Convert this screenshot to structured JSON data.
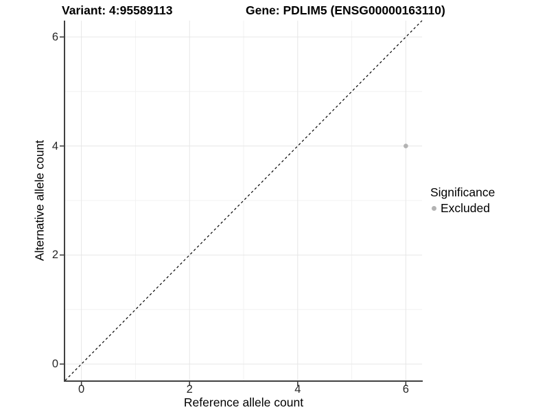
{
  "titles": {
    "variant": "Variant: 4:95589113",
    "gene": "Gene: PDLIM5 (ENSG00000163110)"
  },
  "chart_data": {
    "type": "scatter",
    "xlabel": "Reference allele count",
    "ylabel": "Alternative allele count",
    "xlim": [
      -0.3,
      6.3
    ],
    "ylim": [
      -0.3,
      6.3
    ],
    "x_ticks": [
      0,
      2,
      4,
      6
    ],
    "y_ticks": [
      0,
      2,
      4,
      6
    ],
    "x_minor_ticks": [
      1,
      3,
      5
    ],
    "y_minor_ticks": [
      1,
      3,
      5
    ],
    "grid": true,
    "identity_line": {
      "equation": "y = x",
      "style": "dashed",
      "color": "#000000"
    },
    "points": [
      {
        "x": 6,
        "y": 4,
        "significance": "Excluded"
      }
    ],
    "point_radius": 3.3,
    "legend": {
      "title": "Significance",
      "position": "right",
      "items": [
        {
          "label": "Excluded",
          "color": "#b3b3b3"
        }
      ]
    },
    "colors": {
      "point": "#b3b3b3",
      "grid_major": "#e6e6e6",
      "grid_minor": "#f2f2f2",
      "axis_line": "#404040",
      "tick_mark": "#333333",
      "tick_text": "#262626"
    }
  }
}
